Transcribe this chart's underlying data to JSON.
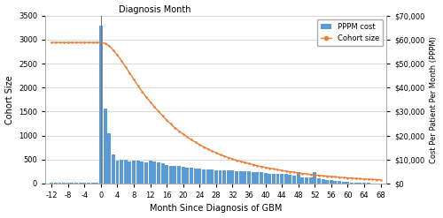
{
  "title": "Diagnosis Month",
  "xlabel": "Month Since Diagnosis of GBM",
  "ylabel_left": "Cohort Size",
  "ylabel_right": "Cost Per Patient Per Month (PPPM)",
  "vline_x": 0,
  "bar_color": "#5b9bd5",
  "line_color": "#ed7d31",
  "months": [
    -12,
    -11,
    -10,
    -9,
    -8,
    -7,
    -6,
    -5,
    -4,
    -3,
    -2,
    -1,
    0,
    1,
    2,
    3,
    4,
    5,
    6,
    7,
    8,
    9,
    10,
    11,
    12,
    13,
    14,
    15,
    16,
    17,
    18,
    19,
    20,
    21,
    22,
    23,
    24,
    25,
    26,
    27,
    28,
    29,
    30,
    31,
    32,
    33,
    34,
    35,
    36,
    37,
    38,
    39,
    40,
    41,
    42,
    43,
    44,
    45,
    46,
    47,
    48,
    49,
    50,
    51,
    52,
    53,
    54,
    55,
    56,
    57,
    58,
    59,
    60,
    61,
    62,
    63,
    64,
    65,
    66,
    67,
    68
  ],
  "bar_heights": [
    20,
    20,
    20,
    20,
    20,
    20,
    20,
    20,
    20,
    20,
    20,
    20,
    3300,
    1570,
    1050,
    600,
    480,
    490,
    490,
    460,
    480,
    470,
    460,
    440,
    480,
    450,
    440,
    430,
    390,
    370,
    360,
    360,
    340,
    330,
    320,
    310,
    310,
    300,
    290,
    290,
    280,
    280,
    270,
    275,
    265,
    260,
    255,
    255,
    250,
    240,
    235,
    230,
    210,
    200,
    200,
    195,
    200,
    195,
    175,
    160,
    240,
    135,
    130,
    120,
    240,
    100,
    90,
    80,
    75,
    60,
    50,
    40,
    30,
    25,
    20,
    15,
    10,
    8,
    5,
    3,
    1
  ],
  "cohort_months": [
    -12,
    -11,
    -10,
    -9,
    -8,
    -7,
    -6,
    -5,
    -4,
    -3,
    -2,
    -1,
    0,
    1,
    2,
    3,
    4,
    5,
    6,
    7,
    8,
    9,
    10,
    11,
    12,
    13,
    14,
    15,
    16,
    17,
    18,
    19,
    20,
    21,
    22,
    23,
    24,
    25,
    26,
    27,
    28,
    29,
    30,
    31,
    32,
    33,
    34,
    35,
    36,
    37,
    38,
    39,
    40,
    41,
    42,
    43,
    44,
    45,
    46,
    47,
    48,
    49,
    50,
    51,
    52,
    53,
    54,
    55,
    56,
    57,
    58,
    59,
    60,
    61,
    62,
    63,
    64,
    65,
    66,
    67,
    68
  ],
  "cohort_size": [
    2940,
    2940,
    2940,
    2940,
    2940,
    2940,
    2940,
    2940,
    2940,
    2940,
    2940,
    2940,
    2940,
    2920,
    2870,
    2780,
    2680,
    2560,
    2430,
    2300,
    2170,
    2040,
    1920,
    1800,
    1700,
    1600,
    1500,
    1410,
    1320,
    1240,
    1160,
    1090,
    1030,
    970,
    910,
    860,
    810,
    760,
    720,
    680,
    640,
    600,
    570,
    540,
    510,
    485,
    460,
    435,
    415,
    393,
    373,
    353,
    335,
    318,
    302,
    286,
    272,
    258,
    244,
    232,
    220,
    208,
    197,
    187,
    177,
    168,
    159,
    151,
    143,
    136,
    129,
    122,
    116,
    110,
    104,
    99,
    94,
    89,
    84,
    80,
    76
  ],
  "xlim": [
    -13.5,
    69.5
  ],
  "ylim_left": [
    0,
    3500
  ],
  "ylim_right": [
    0,
    70000
  ],
  "xticks": [
    -12,
    -8,
    -4,
    0,
    4,
    8,
    12,
    16,
    20,
    24,
    28,
    32,
    36,
    40,
    44,
    48,
    52,
    56,
    60,
    64,
    68
  ],
  "yticks_left": [
    0,
    500,
    1000,
    1500,
    2000,
    2500,
    3000,
    3500
  ],
  "yticks_right": [
    0,
    10000,
    20000,
    30000,
    40000,
    50000,
    60000,
    70000
  ],
  "legend_pppm": "PPPM cost",
  "legend_cohort": "Cohort size",
  "background_color": "#ffffff",
  "grid_color": "#d3d3d3"
}
